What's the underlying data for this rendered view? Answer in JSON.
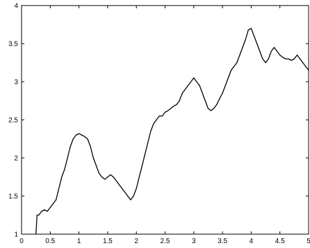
{
  "chart_data": {
    "type": "line",
    "title": "",
    "xlabel": "",
    "ylabel": "",
    "xlim": [
      0,
      5
    ],
    "ylim": [
      1,
      4
    ],
    "grid": false,
    "xticks": [
      "0",
      "0.5",
      "1",
      "1.5",
      "2",
      "2.5",
      "3",
      "3.5",
      "4",
      "4.5",
      "5"
    ],
    "yticks": [
      "1",
      "1.5",
      "2",
      "2.5",
      "3",
      "3.5",
      "4"
    ],
    "line_color": "#000000",
    "series": [
      {
        "x": [
          0.25,
          0.27,
          0.3,
          0.35,
          0.4,
          0.45,
          0.5,
          0.55,
          0.6,
          0.65,
          0.7,
          0.75,
          0.8,
          0.85,
          0.9,
          0.95,
          1.0,
          1.05,
          1.1,
          1.15,
          1.2,
          1.25,
          1.3,
          1.35,
          1.4,
          1.45,
          1.5,
          1.55,
          1.6,
          1.65,
          1.7,
          1.75,
          1.8,
          1.85,
          1.9,
          1.95,
          2.0,
          2.05,
          2.1,
          2.15,
          2.2,
          2.25,
          2.3,
          2.35,
          2.4,
          2.45,
          2.5,
          2.55,
          2.6,
          2.65,
          2.7,
          2.75,
          2.8,
          2.85,
          2.9,
          2.95,
          3.0,
          3.05,
          3.1,
          3.15,
          3.2,
          3.25,
          3.3,
          3.35,
          3.4,
          3.45,
          3.5,
          3.55,
          3.6,
          3.65,
          3.7,
          3.75,
          3.8,
          3.85,
          3.9,
          3.95,
          4.0,
          4.05,
          4.1,
          4.15,
          4.2,
          4.25,
          4.3,
          4.35,
          4.4,
          4.45,
          4.5,
          4.55,
          4.6,
          4.65,
          4.7,
          4.75,
          4.8,
          4.85,
          4.9,
          4.95,
          5.0
        ],
        "y": [
          1.0,
          1.25,
          1.25,
          1.3,
          1.32,
          1.3,
          1.35,
          1.4,
          1.45,
          1.6,
          1.75,
          1.85,
          2.0,
          2.15,
          2.25,
          2.3,
          2.32,
          2.3,
          2.28,
          2.25,
          2.15,
          2.0,
          1.9,
          1.8,
          1.75,
          1.72,
          1.75,
          1.78,
          1.75,
          1.7,
          1.65,
          1.6,
          1.55,
          1.5,
          1.45,
          1.5,
          1.6,
          1.75,
          1.9,
          2.05,
          2.2,
          2.35,
          2.45,
          2.5,
          2.55,
          2.55,
          2.6,
          2.62,
          2.65,
          2.68,
          2.7,
          2.75,
          2.85,
          2.9,
          2.95,
          3.0,
          3.05,
          3.0,
          2.95,
          2.85,
          2.75,
          2.65,
          2.62,
          2.65,
          2.7,
          2.78,
          2.85,
          2.95,
          3.05,
          3.15,
          3.2,
          3.25,
          3.35,
          3.45,
          3.55,
          3.68,
          3.7,
          3.6,
          3.5,
          3.4,
          3.3,
          3.25,
          3.3,
          3.4,
          3.45,
          3.4,
          3.35,
          3.32,
          3.3,
          3.3,
          3.28,
          3.3,
          3.35,
          3.3,
          3.25,
          3.2,
          3.15
        ]
      }
    ]
  }
}
